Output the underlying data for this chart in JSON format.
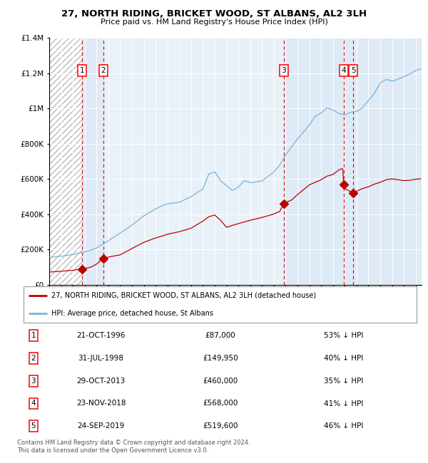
{
  "title": "27, NORTH RIDING, BRICKET WOOD, ST ALBANS, AL2 3LH",
  "subtitle": "Price paid vs. HM Land Registry's House Price Index (HPI)",
  "legend_entry1": "27, NORTH RIDING, BRICKET WOOD, ST ALBANS, AL2 3LH (detached house)",
  "legend_entry2": "HPI: Average price, detached house, St Albans",
  "footer1": "Contains HM Land Registry data © Crown copyright and database right 2024.",
  "footer2": "This data is licensed under the Open Government Licence v3.0.",
  "transactions": [
    {
      "num": 1,
      "date": "21-OCT-1996",
      "price": 87000,
      "pct": "53% ↓ HPI",
      "year": 1996.8
    },
    {
      "num": 2,
      "date": "31-JUL-1998",
      "price": 149950,
      "pct": "40% ↓ HPI",
      "year": 1998.58
    },
    {
      "num": 3,
      "date": "29-OCT-2013",
      "price": 460000,
      "pct": "35% ↓ HPI",
      "year": 2013.83
    },
    {
      "num": 4,
      "date": "23-NOV-2018",
      "price": 568000,
      "pct": "41% ↓ HPI",
      "year": 2018.9
    },
    {
      "num": 5,
      "date": "24-SEP-2019",
      "price": 519600,
      "pct": "46% ↓ HPI",
      "year": 2019.73
    }
  ],
  "hpi_line_color": "#7ab3d4",
  "price_color": "#bb0000",
  "dashed_color": "#cc0000",
  "shade_color": "#deeaf5",
  "plot_bg_color": "#e8f0f8",
  "hatch_color": "#bbbbbb",
  "ylim": [
    0,
    1400000
  ],
  "xlim_start": 1994.0,
  "xlim_end": 2025.5,
  "ytick_vals": [
    0,
    200000,
    400000,
    600000,
    800000,
    1000000,
    1200000,
    1400000
  ],
  "ytick_labels": [
    "£0",
    "£200K",
    "£400K",
    "£600K",
    "£800K",
    "£1M",
    "£1.2M",
    "£1.4M"
  ],
  "background_color": "#ffffff"
}
